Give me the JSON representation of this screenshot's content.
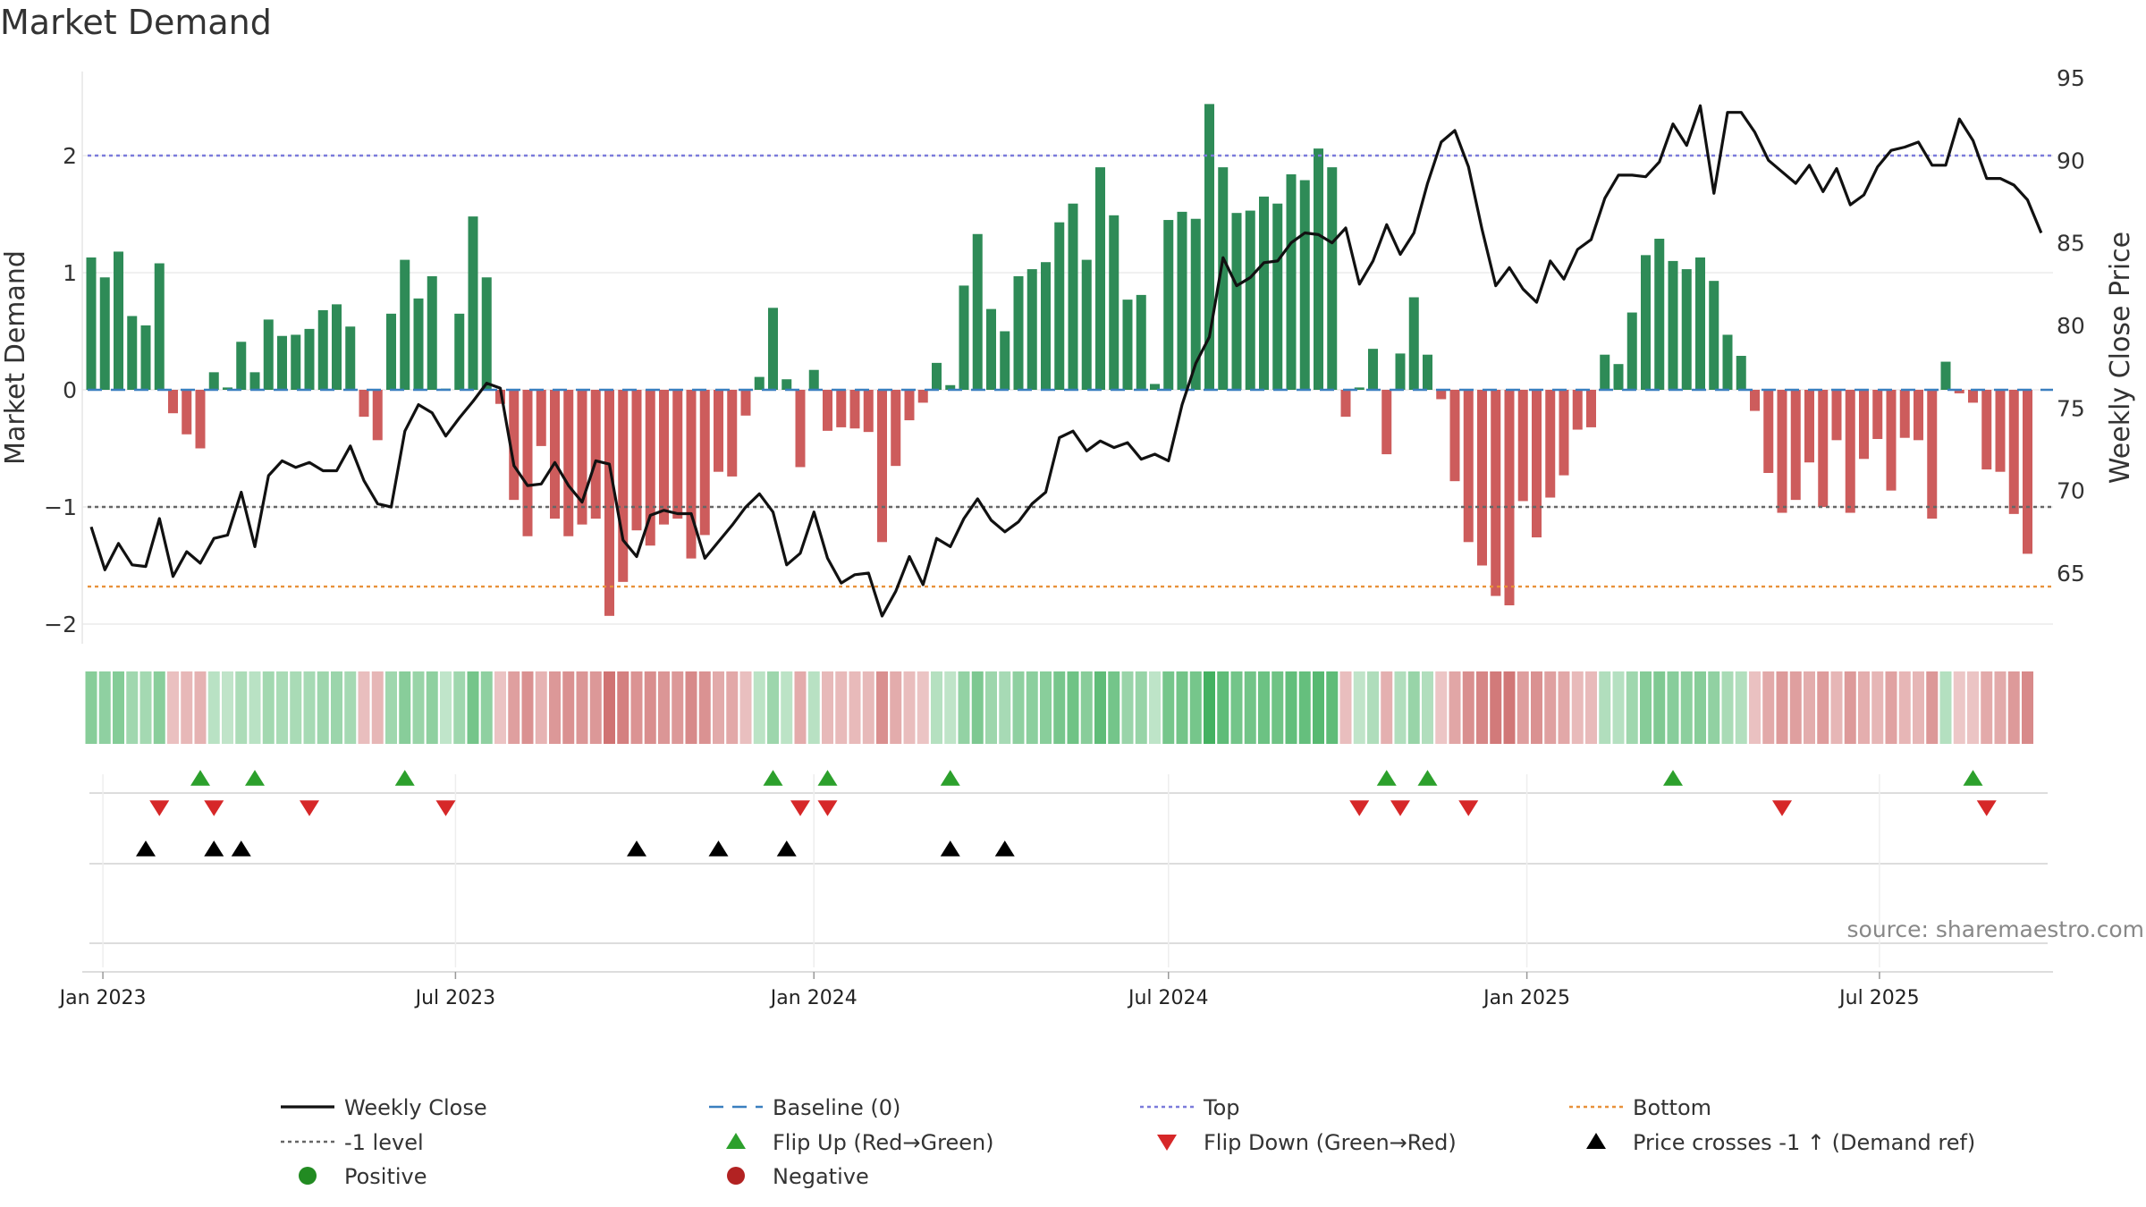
{
  "chart_data": {
    "type": "bar",
    "title": "Market Demand",
    "ylabel_left": "Market Demand",
    "ylabel_right": "Weekly Close Price",
    "ylim_left": [
      -2.2,
      2.75
    ],
    "yticks_left": [
      -2,
      -1,
      0,
      1,
      2
    ],
    "ylim_right": [
      61.4,
      96.5
    ],
    "yticks_right": [
      65,
      70,
      75,
      80,
      85,
      90,
      95
    ],
    "start_date": "2022-12-26",
    "date_ticks": [
      {
        "label": "Jan 2023",
        "date": "2023-01-01"
      },
      {
        "label": "Jul 2023",
        "date": "2023-07-01"
      },
      {
        "label": "Jan 2024",
        "date": "2024-01-01"
      },
      {
        "label": "Jul 2024",
        "date": "2024-07-01"
      },
      {
        "label": "Jan 2025",
        "date": "2025-01-01"
      },
      {
        "label": "Jul 2025",
        "date": "2025-07-01"
      }
    ],
    "demand": [
      1.13,
      0.96,
      1.18,
      0.63,
      0.55,
      1.08,
      -0.2,
      -0.38,
      -0.5,
      0.15,
      0.02,
      0.41,
      0.15,
      0.6,
      0.46,
      0.47,
      0.52,
      0.68,
      0.73,
      0.54,
      -0.23,
      -0.43,
      0.65,
      1.11,
      0.78,
      0.97,
      0.01,
      0.65,
      1.48,
      0.96,
      -0.12,
      -0.94,
      -1.25,
      -0.48,
      -1.1,
      -1.25,
      -1.15,
      -1.1,
      -1.93,
      -1.64,
      -1.2,
      -1.33,
      -1.15,
      -1.1,
      -1.44,
      -1.24,
      -0.7,
      -0.74,
      -0.22,
      0.11,
      0.7,
      0.09,
      -0.66,
      0.17,
      -0.35,
      -0.32,
      -0.33,
      -0.36,
      -1.3,
      -0.65,
      -0.26,
      -0.11,
      0.23,
      0.04,
      0.89,
      1.33,
      0.69,
      0.5,
      0.97,
      1.03,
      1.09,
      1.43,
      1.59,
      1.11,
      1.9,
      1.49,
      0.77,
      0.81,
      0.05,
      1.45,
      1.52,
      1.46,
      2.44,
      1.9,
      1.51,
      1.53,
      1.65,
      1.59,
      1.84,
      1.79,
      2.06,
      1.9,
      -0.23,
      0.02,
      0.35,
      -0.55,
      0.31,
      0.79,
      0.3,
      -0.08,
      -0.78,
      -1.3,
      -1.5,
      -1.76,
      -1.84,
      -0.95,
      -1.26,
      -0.92,
      -0.73,
      -0.34,
      -0.32,
      0.3,
      0.22,
      0.66,
      1.15,
      1.29,
      1.1,
      1.03,
      1.13,
      0.93,
      0.47,
      0.29,
      -0.18,
      -0.71,
      -1.05,
      -0.94,
      -0.62,
      -1.0,
      -0.43,
      -1.05,
      -0.59,
      -0.42,
      -0.86,
      -0.41,
      -0.43,
      -1.1,
      0.24,
      -0.03,
      -0.11,
      -0.68,
      -0.7,
      -1.06,
      -1.4
    ],
    "close": [
      67.8,
      65.2,
      66.8,
      65.5,
      65.4,
      68.3,
      64.8,
      66.3,
      65.6,
      67.1,
      67.3,
      69.9,
      66.6,
      70.9,
      71.8,
      71.4,
      71.7,
      71.2,
      71.2,
      72.7,
      70.6,
      69.2,
      69.0,
      73.6,
      75.2,
      74.7,
      73.3,
      74.4,
      75.4,
      76.5,
      76.2,
      71.5,
      70.3,
      70.4,
      71.7,
      70.3,
      69.3,
      71.8,
      71.6,
      67.0,
      66.0,
      68.5,
      68.8,
      68.6,
      68.6,
      65.9,
      66.9,
      67.9,
      69.0,
      69.8,
      68.7,
      65.5,
      66.2,
      68.7,
      65.9,
      64.4,
      64.9,
      65.0,
      62.4,
      63.9,
      66.0,
      64.3,
      67.1,
      66.6,
      68.3,
      69.5,
      68.2,
      67.5,
      68.1,
      69.2,
      69.9,
      73.2,
      73.6,
      72.4,
      73.0,
      72.6,
      72.9,
      71.9,
      72.2,
      71.8,
      75.2,
      77.7,
      79.3,
      84.1,
      82.4,
      82.9,
      83.8,
      83.9,
      85.0,
      85.6,
      85.5,
      85.0,
      85.9,
      82.5,
      83.9,
      86.1,
      84.3,
      85.6,
      88.6,
      91.1,
      91.8,
      89.6,
      85.8,
      82.4,
      83.5,
      82.2,
      81.4,
      83.9,
      82.8,
      84.6,
      85.2,
      87.7,
      89.1,
      89.1,
      89.0,
      89.9,
      92.2,
      90.9,
      93.3,
      88.0,
      92.9,
      92.9,
      91.7,
      90.0,
      89.3,
      88.6,
      89.7,
      88.1,
      89.5,
      87.3,
      87.9,
      89.6,
      90.6,
      90.8,
      91.1,
      89.7,
      89.7,
      92.5,
      91.2,
      88.9,
      88.9,
      88.5,
      87.6,
      85.6
    ],
    "weeks_up": [
      8,
      12,
      23,
      50,
      54,
      63,
      95,
      98,
      116,
      138
    ],
    "weeks_down": [
      5,
      9,
      16,
      26,
      52,
      54,
      93,
      96,
      101,
      124,
      139
    ],
    "weeks_price_cross": [
      4,
      9,
      11,
      40,
      46,
      51,
      63,
      67
    ],
    "reference_lines": [
      {
        "name": "Top",
        "value": 2.0,
        "color": "#7b7bdb"
      },
      {
        "name": "-1 level",
        "value": -1.0,
        "color": "#666666"
      },
      {
        "name": "Bottom",
        "value": -1.68,
        "color": "#e8913a"
      },
      {
        "name": "Baseline (0)",
        "value": 0.0,
        "color": "#3a7fbf"
      }
    ],
    "colors": {
      "positive": "#2e8b57",
      "negative": "#cd5c5c",
      "price": "#111111",
      "flip_up": "#2ca02c",
      "flip_down": "#d62728",
      "cross": "#000000",
      "grid": "#e6e6e6",
      "legend_positive": "#228b22",
      "legend_negative": "#b22222"
    },
    "legend": [
      {
        "key": "weekly-close",
        "label": "Weekly Close",
        "marker": "solid-line"
      },
      {
        "key": "baseline",
        "label": "Baseline (0)",
        "marker": "dashed-blue"
      },
      {
        "key": "top",
        "label": "Top",
        "marker": "dotted-purple"
      },
      {
        "key": "bottom",
        "label": "Bottom",
        "marker": "dotted-orange"
      },
      {
        "key": "minus-one",
        "label": "-1 level",
        "marker": "dotted-gray"
      },
      {
        "key": "flip-up",
        "label": "Flip Up (Red→Green)",
        "marker": "triangle-up-green"
      },
      {
        "key": "flip-down",
        "label": "Flip Down (Green→Red)",
        "marker": "triangle-down-red"
      },
      {
        "key": "price-cross",
        "label": "Price crosses -1 ↑ (Demand ref)",
        "marker": "triangle-up-black"
      },
      {
        "key": "positive",
        "label": "Positive",
        "marker": "dot-green"
      },
      {
        "key": "negative",
        "label": "Negative",
        "marker": "dot-red"
      }
    ],
    "source": "source: sharemaestro.com"
  }
}
